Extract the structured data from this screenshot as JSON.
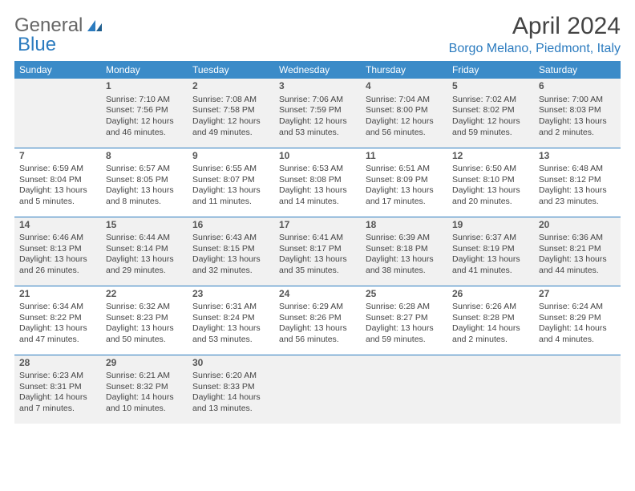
{
  "logo": {
    "general": "General",
    "blue": "Blue"
  },
  "title": "April 2024",
  "location": "Borgo Melano, Piedmont, Italy",
  "weekdays": [
    "Sunday",
    "Monday",
    "Tuesday",
    "Wednesday",
    "Thursday",
    "Friday",
    "Saturday"
  ],
  "colors": {
    "header_bg": "#3b8bc8",
    "accent": "#2b7bbf",
    "text": "#444444",
    "shaded": "#f1f1f1",
    "background": "#ffffff"
  },
  "typography": {
    "title_fontsize": 30,
    "location_fontsize": 16,
    "header_fontsize": 12,
    "cell_fontsize": 10.5,
    "daynum_fontsize": 12
  },
  "layout": {
    "columns": 7,
    "rows": 5,
    "first_day_column_index": 1
  },
  "days": [
    {
      "n": 1,
      "sunrise": "7:10 AM",
      "sunset": "7:56 PM",
      "daylight": "12 hours and 46 minutes."
    },
    {
      "n": 2,
      "sunrise": "7:08 AM",
      "sunset": "7:58 PM",
      "daylight": "12 hours and 49 minutes."
    },
    {
      "n": 3,
      "sunrise": "7:06 AM",
      "sunset": "7:59 PM",
      "daylight": "12 hours and 53 minutes."
    },
    {
      "n": 4,
      "sunrise": "7:04 AM",
      "sunset": "8:00 PM",
      "daylight": "12 hours and 56 minutes."
    },
    {
      "n": 5,
      "sunrise": "7:02 AM",
      "sunset": "8:02 PM",
      "daylight": "12 hours and 59 minutes."
    },
    {
      "n": 6,
      "sunrise": "7:00 AM",
      "sunset": "8:03 PM",
      "daylight": "13 hours and 2 minutes."
    },
    {
      "n": 7,
      "sunrise": "6:59 AM",
      "sunset": "8:04 PM",
      "daylight": "13 hours and 5 minutes."
    },
    {
      "n": 8,
      "sunrise": "6:57 AM",
      "sunset": "8:05 PM",
      "daylight": "13 hours and 8 minutes."
    },
    {
      "n": 9,
      "sunrise": "6:55 AM",
      "sunset": "8:07 PM",
      "daylight": "13 hours and 11 minutes."
    },
    {
      "n": 10,
      "sunrise": "6:53 AM",
      "sunset": "8:08 PM",
      "daylight": "13 hours and 14 minutes."
    },
    {
      "n": 11,
      "sunrise": "6:51 AM",
      "sunset": "8:09 PM",
      "daylight": "13 hours and 17 minutes."
    },
    {
      "n": 12,
      "sunrise": "6:50 AM",
      "sunset": "8:10 PM",
      "daylight": "13 hours and 20 minutes."
    },
    {
      "n": 13,
      "sunrise": "6:48 AM",
      "sunset": "8:12 PM",
      "daylight": "13 hours and 23 minutes."
    },
    {
      "n": 14,
      "sunrise": "6:46 AM",
      "sunset": "8:13 PM",
      "daylight": "13 hours and 26 minutes."
    },
    {
      "n": 15,
      "sunrise": "6:44 AM",
      "sunset": "8:14 PM",
      "daylight": "13 hours and 29 minutes."
    },
    {
      "n": 16,
      "sunrise": "6:43 AM",
      "sunset": "8:15 PM",
      "daylight": "13 hours and 32 minutes."
    },
    {
      "n": 17,
      "sunrise": "6:41 AM",
      "sunset": "8:17 PM",
      "daylight": "13 hours and 35 minutes."
    },
    {
      "n": 18,
      "sunrise": "6:39 AM",
      "sunset": "8:18 PM",
      "daylight": "13 hours and 38 minutes."
    },
    {
      "n": 19,
      "sunrise": "6:37 AM",
      "sunset": "8:19 PM",
      "daylight": "13 hours and 41 minutes."
    },
    {
      "n": 20,
      "sunrise": "6:36 AM",
      "sunset": "8:21 PM",
      "daylight": "13 hours and 44 minutes."
    },
    {
      "n": 21,
      "sunrise": "6:34 AM",
      "sunset": "8:22 PM",
      "daylight": "13 hours and 47 minutes."
    },
    {
      "n": 22,
      "sunrise": "6:32 AM",
      "sunset": "8:23 PM",
      "daylight": "13 hours and 50 minutes."
    },
    {
      "n": 23,
      "sunrise": "6:31 AM",
      "sunset": "8:24 PM",
      "daylight": "13 hours and 53 minutes."
    },
    {
      "n": 24,
      "sunrise": "6:29 AM",
      "sunset": "8:26 PM",
      "daylight": "13 hours and 56 minutes."
    },
    {
      "n": 25,
      "sunrise": "6:28 AM",
      "sunset": "8:27 PM",
      "daylight": "13 hours and 59 minutes."
    },
    {
      "n": 26,
      "sunrise": "6:26 AM",
      "sunset": "8:28 PM",
      "daylight": "14 hours and 2 minutes."
    },
    {
      "n": 27,
      "sunrise": "6:24 AM",
      "sunset": "8:29 PM",
      "daylight": "14 hours and 4 minutes."
    },
    {
      "n": 28,
      "sunrise": "6:23 AM",
      "sunset": "8:31 PM",
      "daylight": "14 hours and 7 minutes."
    },
    {
      "n": 29,
      "sunrise": "6:21 AM",
      "sunset": "8:32 PM",
      "daylight": "14 hours and 10 minutes."
    },
    {
      "n": 30,
      "sunrise": "6:20 AM",
      "sunset": "8:33 PM",
      "daylight": "14 hours and 13 minutes."
    }
  ],
  "labels": {
    "sunrise": "Sunrise:",
    "sunset": "Sunset:",
    "daylight": "Daylight:"
  }
}
